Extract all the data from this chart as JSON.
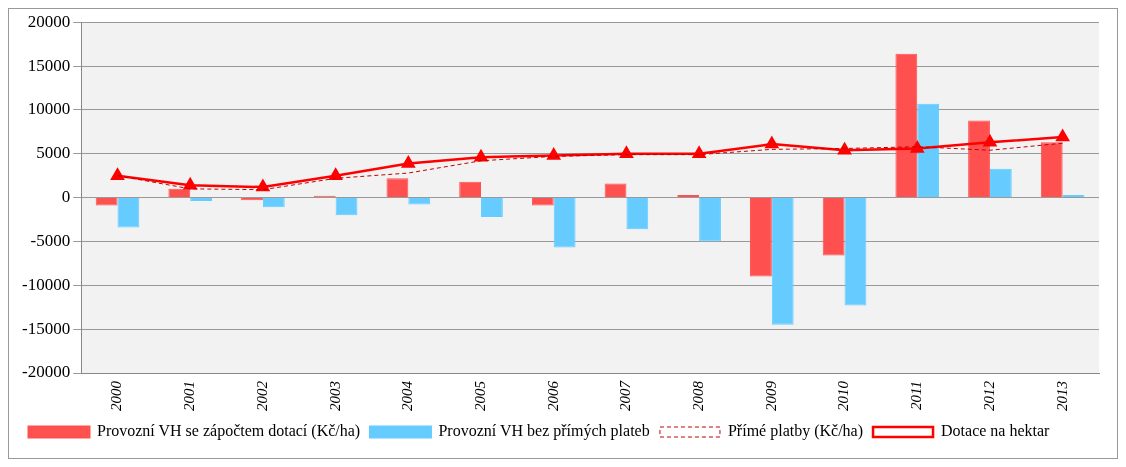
{
  "chart_data": {
    "type": "bar",
    "categories": [
      "2000",
      "2001",
      "2002",
      "2003",
      "2004",
      "2005",
      "2006",
      "2007",
      "2008",
      "2009",
      "2010",
      "2011",
      "2012",
      "2013"
    ],
    "series": [
      {
        "name": "Provozní VH se zápočtem dotací (Kč/ha)",
        "color": "#ff5050",
        "values": [
          -900,
          1000,
          -300,
          200,
          2200,
          1800,
          -900,
          1600,
          300,
          -9000,
          -6600,
          16400,
          8800,
          6300
        ]
      },
      {
        "name": "Provozní VH bez přímých plateb",
        "color": "#66ccff",
        "values": [
          -3400,
          -400,
          -1100,
          -2000,
          -800,
          -2200,
          -5700,
          -3600,
          -5000,
          -14500,
          -12300,
          10700,
          3300,
          300
        ]
      },
      {
        "name": "Přímé platby (Kč/ha)",
        "type": "line",
        "color": "#c00000",
        "line_style": "dashed",
        "marker": "none",
        "values": [
          2500,
          1000,
          900,
          2200,
          2800,
          4200,
          4700,
          4900,
          4900,
          5500,
          5600,
          5800,
          5400,
          6200
        ]
      },
      {
        "name": "Dotace na hektar",
        "type": "line",
        "color": "#ff0000",
        "line_style": "solid",
        "marker": "triangle",
        "values": [
          2500,
          1400,
          1200,
          2500,
          3900,
          4600,
          4800,
          5000,
          5000,
          6100,
          5400,
          5600,
          6300,
          6900
        ]
      }
    ],
    "ylim": [
      -20000,
      20000
    ],
    "yticks": [
      -20000,
      -15000,
      -10000,
      -5000,
      0,
      5000,
      10000,
      15000,
      20000
    ],
    "grid": "y",
    "legend": "bottom"
  }
}
